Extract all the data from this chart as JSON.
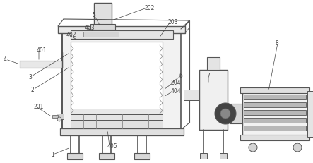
{
  "bg_color": "#ffffff",
  "line_color": "#888888",
  "dark_line": "#555555",
  "label_color": "#444444",
  "font_size": 5.5,
  "fig_w": 4.43,
  "fig_h": 2.32
}
